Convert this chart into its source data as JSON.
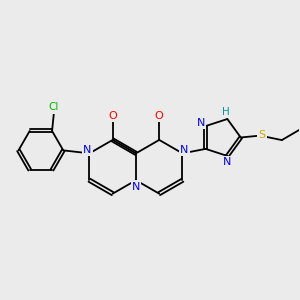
{
  "background_color": "#ebebeb",
  "bond_color": "#000000",
  "atom_colors": {
    "N": "#0000ff",
    "O": "#ff0000",
    "Cl": "#00bb00",
    "S": "#ccaa00",
    "H": "#009999",
    "C": "#000000"
  },
  "figsize": [
    3.0,
    3.0
  ],
  "dpi": 100
}
